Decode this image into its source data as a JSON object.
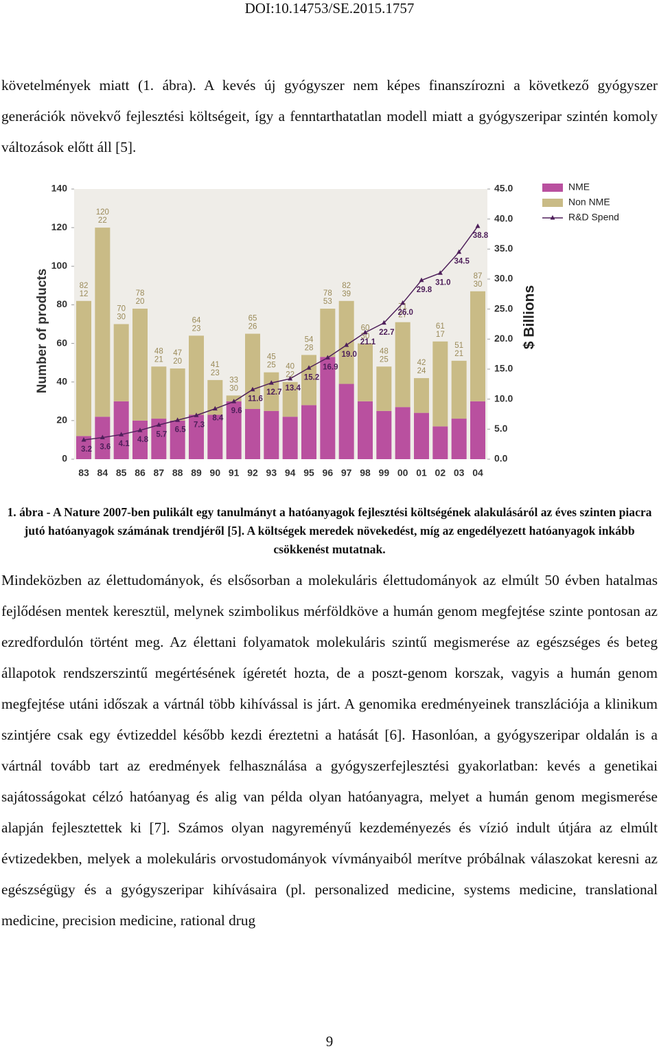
{
  "header": {
    "doi": "DOI:10.14753/SE.2015.1757"
  },
  "paragraphs": [
    "követelmények miatt (1. ábra). A kevés új gyógyszer nem képes finanszírozni a következő gyógyszer generációk növekvő fejlesztési költségeit, így a fenntarthatatlan modell miatt a gyógyszeripar szintén komoly változások előtt áll [5].",
    "Mindeközben az élettudományok, és elsősorban a molekuláris élettudományok az elmúlt 50 évben hatalmas fejlődésen mentek keresztül, melynek szimbolikus mérföldköve a humán genom megfejtése szinte pontosan az ezredfordulón történt meg. Az élettani folyamatok molekuláris szintű megismerése az egészséges és beteg állapotok rendszerszintű megértésének ígéretét hozta, de a poszt-genom korszak, vagyis a humán genom megfejtése utáni időszak a vártnál több kihívással is járt. A genomika eredményeinek transzlációja a klinikum szintjére csak egy évtizeddel később kezdi éreztetni a hatását [6]. Hasonlóan, a gyógyszeripar oldalán is a vártnál tovább tart az eredmények felhasználása a gyógyszerfejlesztési gyakorlatban: kevés a genetikai sajátosságokat célzó hatóanyag és alig van példa olyan hatóanyagra, melyet a humán genom megismerése alapján fejlesztettek ki [7]. Számos olyan nagyreményű kezdeményezés és vízió indult útjára az elmúlt évtizedekben, melyek a molekuláris orvostudományok vívmányaiból merítve próbálnak válaszokat keresni az egészségügy és a gyógyszeripar kihívásaira (pl. personalized medicine, systems medicine, translational medicine, precision medicine, rational drug"
  ],
  "caption": "1. ábra - A Nature 2007-ben pulikált egy tanulmányt a hatóanyagok fejlesztési költségének alakulásáról az éves szinten piacra jutó hatóanyagok számának trendjéről [5]. A költségek meredek növekedést, míg az engedélyezett hatóanyagok inkább csökkenést mutatnak.",
  "page_number": "9",
  "chart_data": {
    "type": "bar",
    "stacked": true,
    "y_label": "Number of products",
    "y2_label": "$ Billions",
    "categories": [
      "83",
      "84",
      "85",
      "86",
      "87",
      "88",
      "89",
      "90",
      "91",
      "92",
      "93",
      "94",
      "95",
      "96",
      "97",
      "98",
      "99",
      "00",
      "01",
      "02",
      "03",
      "04"
    ],
    "series": [
      {
        "name": "NME",
        "color": "#b9509f",
        "values": [
          12,
          22,
          30,
          20,
          21,
          20,
          23,
          23,
          30,
          26,
          25,
          22,
          28,
          53,
          39,
          30,
          25,
          27,
          24,
          17,
          21,
          30
        ]
      },
      {
        "name": "Non NME",
        "color": "#c9bb86",
        "values": [
          70,
          98,
          40,
          58,
          27,
          27,
          41,
          18,
          3,
          39,
          20,
          18,
          26,
          25,
          43,
          30,
          23,
          44,
          18,
          44,
          30,
          57
        ]
      },
      {
        "name": "R&D Spend",
        "color": "#4e1f5a",
        "type": "line",
        "axis": "y2",
        "values": [
          3.2,
          3.6,
          4.1,
          4.8,
          5.7,
          6.5,
          7.3,
          8.4,
          9.6,
          11.6,
          12.7,
          13.4,
          15.2,
          16.9,
          19.0,
          21.1,
          22.7,
          26.0,
          29.8,
          31.0,
          34.5,
          38.8
        ],
        "value_labels": [
          "3.2",
          "3.6",
          "4.1",
          "4.8",
          "5.7",
          "6.5",
          "7.3",
          "8.4",
          "9.6",
          "11.6",
          "12.7",
          "13.4",
          "15.2",
          "16.9",
          "19.0",
          "21.1",
          "22.7",
          "26.0",
          "29.8",
          "31.0",
          "34.5",
          "38.8"
        ]
      }
    ],
    "totals": [
      82,
      120,
      70,
      78,
      48,
      47,
      64,
      41,
      33,
      65,
      45,
      40,
      54,
      78,
      82,
      60,
      48,
      71,
      42,
      61,
      51,
      87
    ],
    "ylim": [
      0,
      140
    ],
    "yticks": [
      0,
      20,
      40,
      60,
      80,
      100,
      120,
      140
    ],
    "y2lim": [
      0,
      45
    ],
    "y2ticks": [
      {
        "value": 0,
        "label": "0.0"
      },
      {
        "value": 5,
        "label": "5.0"
      },
      {
        "value": 10,
        "label": "10.0"
      },
      {
        "value": 15,
        "label": "15.0"
      },
      {
        "value": 20,
        "label": "20.0"
      },
      {
        "value": 25,
        "label": "25.0"
      },
      {
        "value": 30,
        "label": "30.0"
      },
      {
        "value": 35,
        "label": "35.0"
      },
      {
        "value": 40,
        "label": "40.0"
      },
      {
        "value": 45,
        "label": "45.0"
      }
    ],
    "legend": "top-right"
  }
}
